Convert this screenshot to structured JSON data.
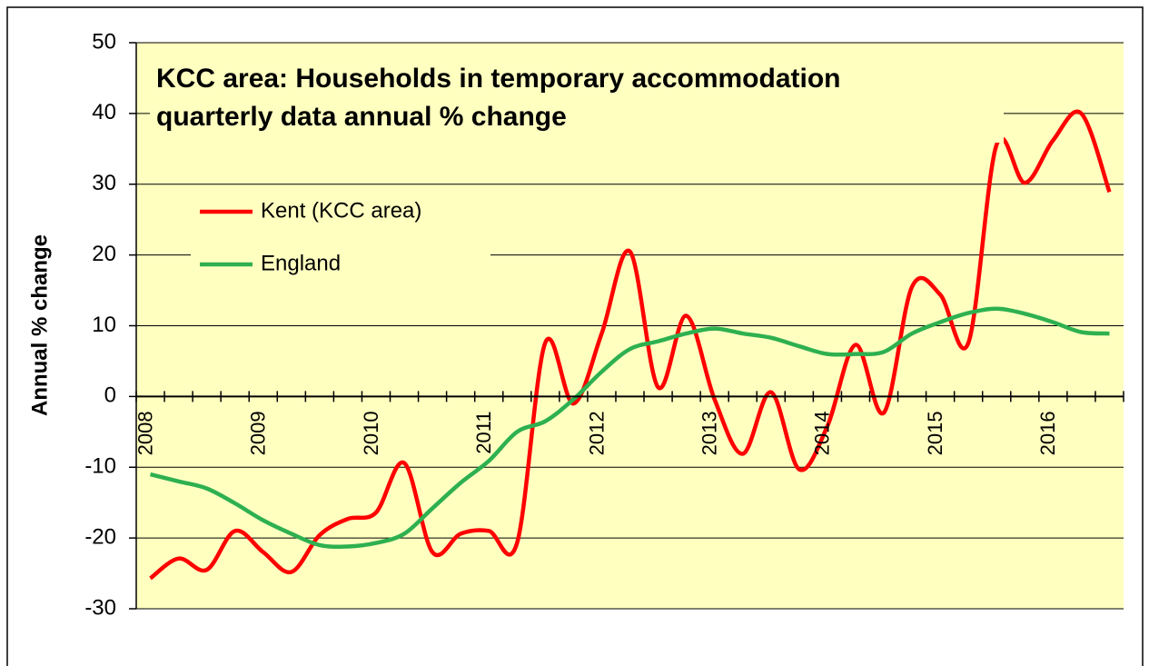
{
  "chart_data": {
    "type": "line",
    "title": [
      "KCC area: Households in temporary accommodation",
      "quarterly data annual % change"
    ],
    "y_label": "Annual % change",
    "categories": [
      "2008",
      null,
      null,
      null,
      "2009",
      null,
      null,
      null,
      "2010",
      null,
      null,
      null,
      "2011",
      null,
      null,
      null,
      "2012",
      null,
      null,
      null,
      "2013",
      null,
      null,
      null,
      "2014",
      null,
      null,
      null,
      "2015",
      null,
      null,
      null,
      "2016",
      null,
      null
    ],
    "series": [
      {
        "name": "Kent (KCC area)",
        "color": "#ff0000",
        "values": [
          -25.7,
          -22.9,
          -24.5,
          -19,
          -22,
          -24.8,
          -19.6,
          -17.3,
          -16.4,
          -9.4,
          -22,
          -19.4,
          -19,
          -20.7,
          7.6,
          -1,
          8.9,
          20.5,
          1.3,
          11.4,
          -0.4,
          -8.1,
          0.6,
          -10.3,
          -4.2,
          7.3,
          -2.3,
          15.5,
          14.4,
          7.6,
          35.6,
          30.2,
          36.2,
          40,
          28.9
        ]
      },
      {
        "name": "England",
        "color": "#2eb050",
        "values": [
          -11,
          -12,
          -13,
          -15.1,
          -17.5,
          -19.4,
          -21,
          -21.2,
          -20.7,
          -19.4,
          -15.8,
          -12.2,
          -9.1,
          -5,
          -3.5,
          -0.4,
          3.5,
          6.7,
          7.8,
          8.9,
          9.6,
          8.9,
          8.3,
          7.1,
          6,
          6,
          6.3,
          8.9,
          10.5,
          11.8,
          12.4,
          11.7,
          10.5,
          9.1,
          8.9
        ]
      }
    ],
    "ylim": [
      -30,
      50
    ],
    "yticks": [
      -30,
      -20,
      -10,
      0,
      10,
      20,
      30,
      40,
      50
    ],
    "grid": true,
    "legend": "upper left"
  }
}
